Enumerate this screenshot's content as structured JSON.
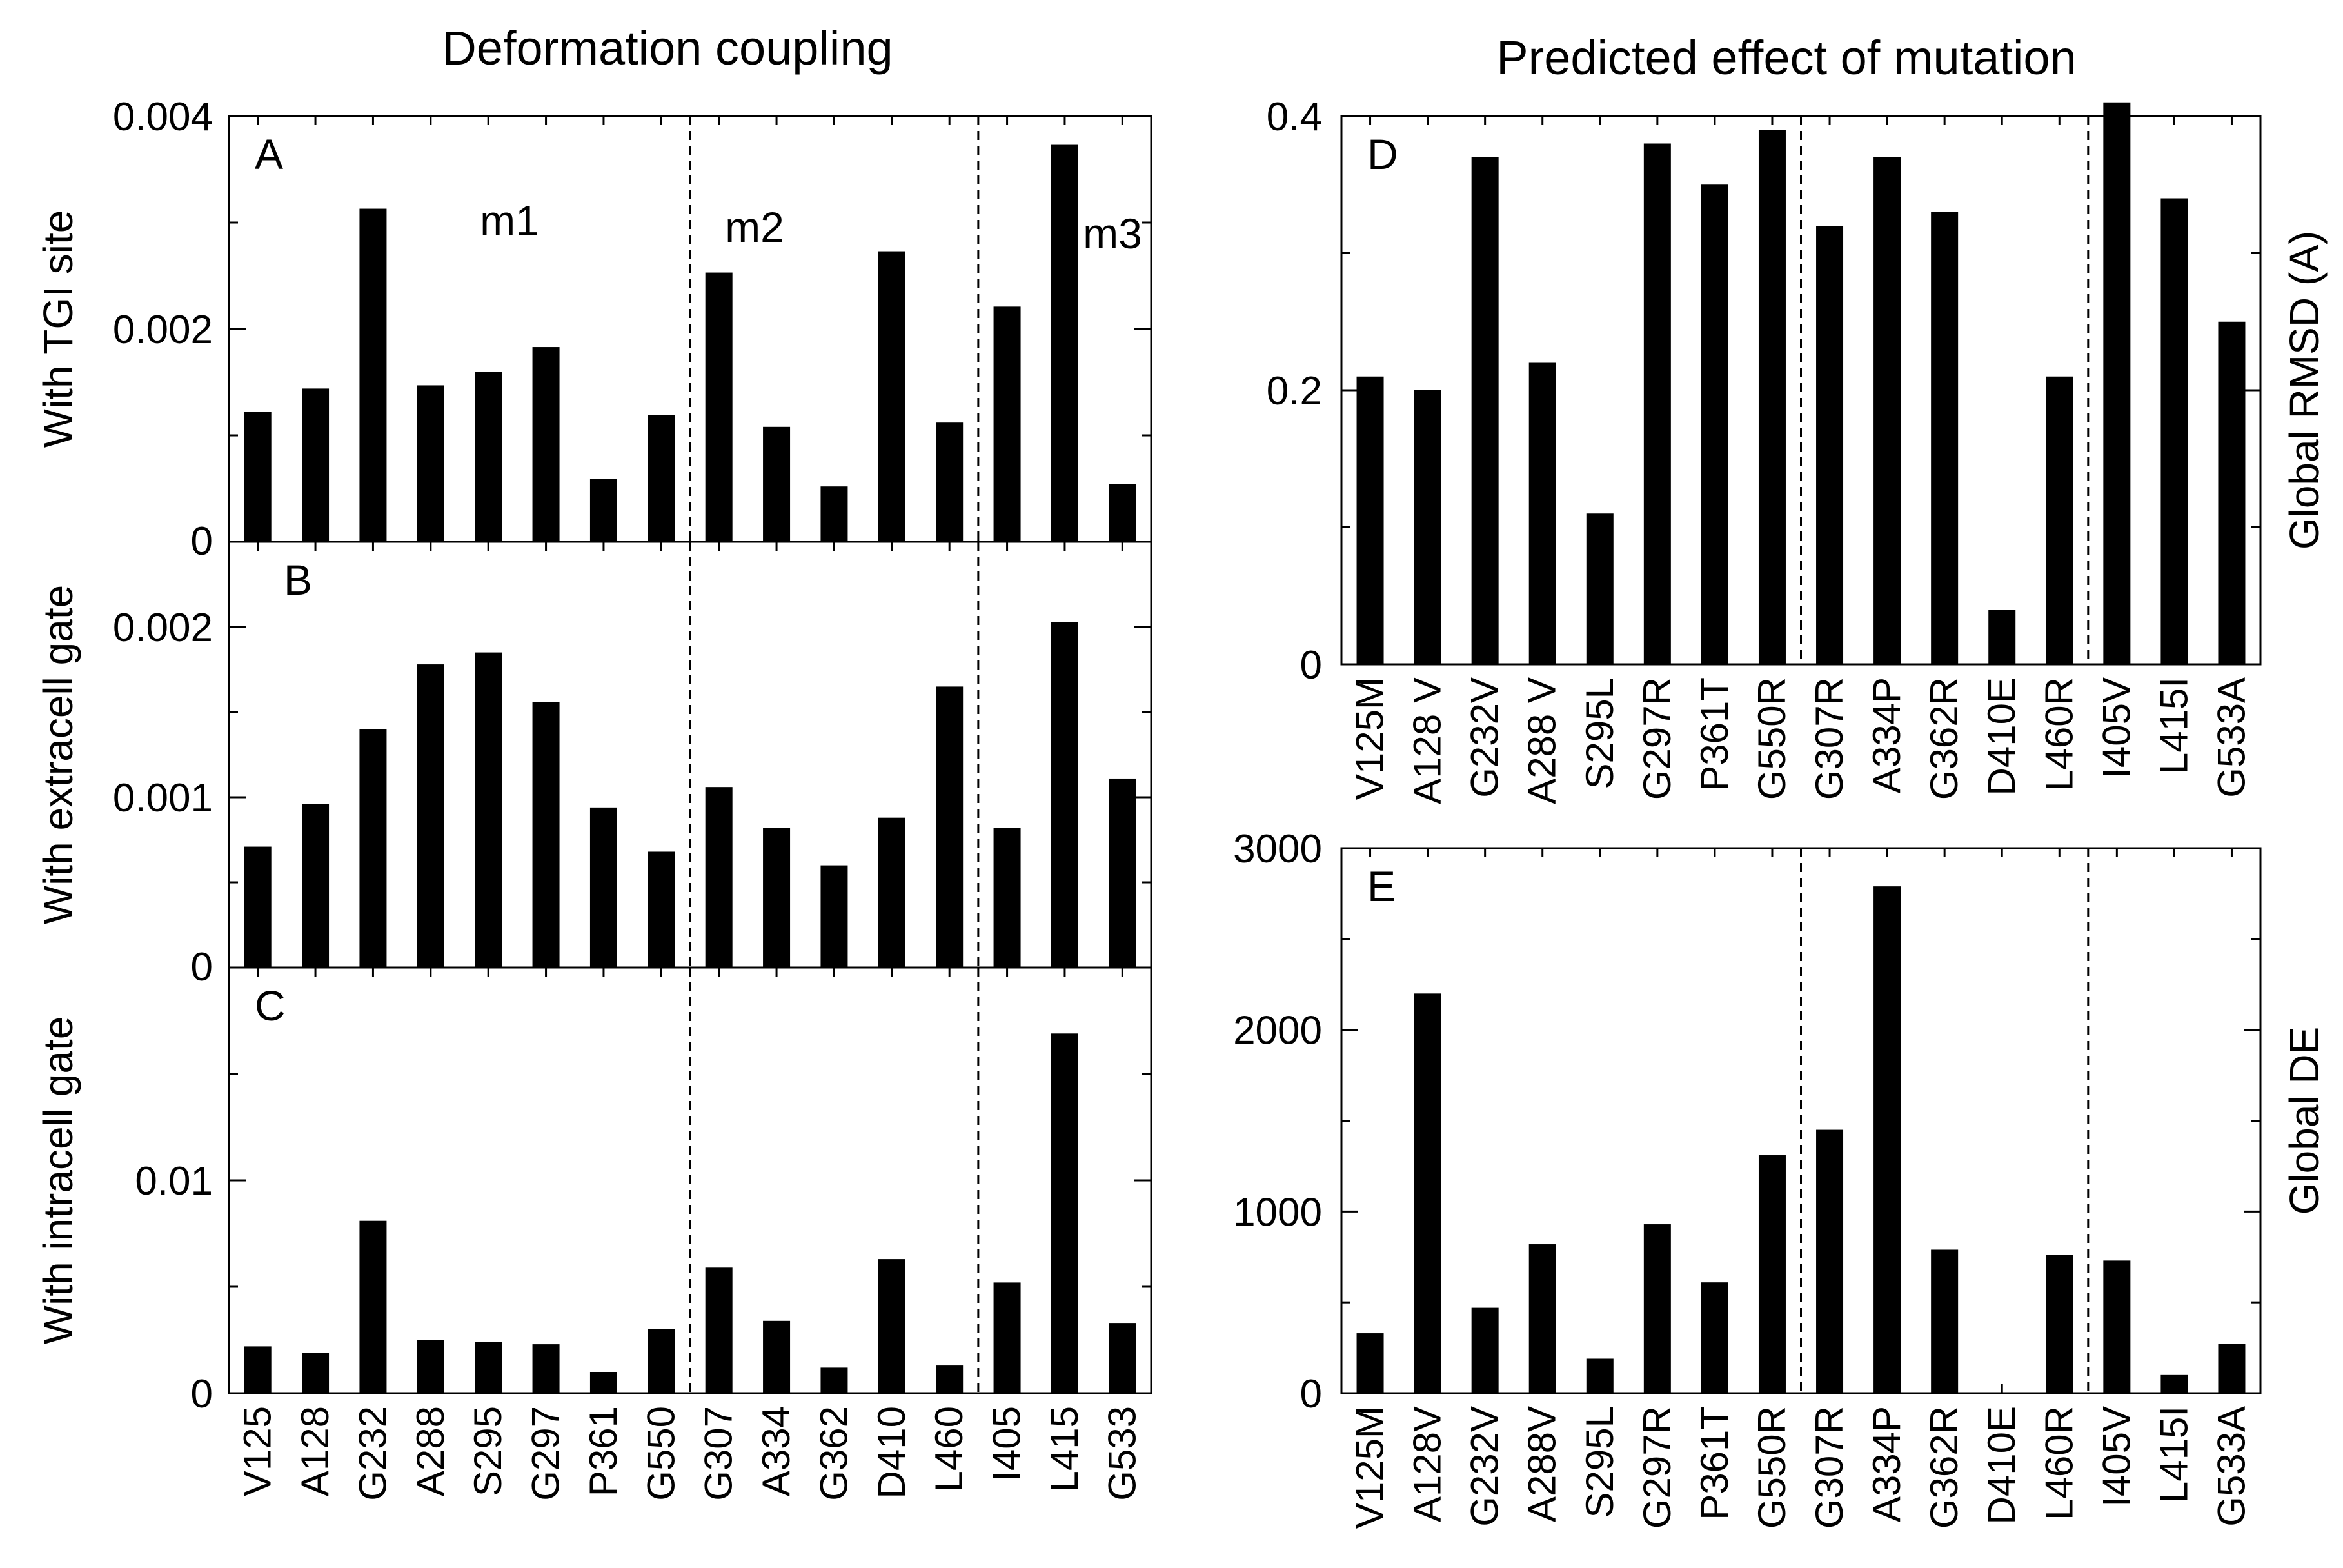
{
  "titles": {
    "left": "Deformation coupling",
    "right": "Predicted effect of mutation"
  },
  "chart_data": [
    {
      "type": "bar",
      "panel": "A",
      "ylabel": "With TGI site",
      "ylim": [
        0,
        0.004
      ],
      "yticks": [
        0,
        0.002,
        0.004
      ],
      "ytick_labels": [
        "0",
        "0.002",
        "0.004"
      ],
      "categories": [
        "V125",
        "A128",
        "G232",
        "A288",
        "S295",
        "G297",
        "P361",
        "G550",
        "G307",
        "A334",
        "G362",
        "D410",
        "L460",
        "I405",
        "L415",
        "G533"
      ],
      "values": [
        0.00122,
        0.00144,
        0.00313,
        0.00147,
        0.0016,
        0.00183,
        0.00059,
        0.00119,
        0.00253,
        0.00108,
        0.00052,
        0.00273,
        0.00112,
        0.00221,
        0.00373,
        0.00054
      ],
      "annotations": [
        "m1",
        "m2",
        "m3"
      ],
      "group_dividers_after": [
        8,
        13
      ]
    },
    {
      "type": "bar",
      "panel": "B",
      "ylabel": "With extracell gate",
      "ylim": [
        0,
        0.0025
      ],
      "yticks": [
        0,
        0.001,
        0.002
      ],
      "ytick_labels": [
        "0",
        "0.001",
        "0.002"
      ],
      "categories": [
        "V125",
        "A128",
        "G232",
        "A288",
        "S295",
        "G297",
        "P361",
        "G550",
        "G307",
        "A334",
        "G362",
        "D410",
        "L460",
        "I405",
        "L415",
        "G533"
      ],
      "values": [
        0.00071,
        0.00096,
        0.0014,
        0.00178,
        0.00185,
        0.00156,
        0.00094,
        0.00068,
        0.00106,
        0.00082,
        0.0006,
        0.00088,
        0.00165,
        0.00082,
        0.00203,
        0.00111
      ],
      "group_dividers_after": [
        8,
        13
      ]
    },
    {
      "type": "bar",
      "panel": "C",
      "ylabel": "With intracell gate",
      "ylim": [
        0,
        0.02
      ],
      "yticks": [
        0,
        0.01
      ],
      "ytick_labels": [
        "0",
        "0.01"
      ],
      "categories": [
        "V125",
        "A128",
        "G232",
        "A288",
        "S295",
        "G297",
        "P361",
        "G550",
        "G307",
        "A334",
        "G362",
        "D410",
        "L460",
        "I405",
        "L415",
        "G533"
      ],
      "values": [
        0.0022,
        0.0019,
        0.0081,
        0.0025,
        0.0024,
        0.0023,
        0.001,
        0.003,
        0.0059,
        0.0034,
        0.0012,
        0.0063,
        0.0013,
        0.0052,
        0.0169,
        0.0033
      ],
      "group_dividers_after": [
        8,
        13
      ]
    },
    {
      "type": "bar",
      "panel": "D",
      "ylabel": "Global RMSD (A)",
      "ylim": [
        0,
        0.4
      ],
      "yticks": [
        0,
        0.2,
        0.4
      ],
      "ytick_labels": [
        "0",
        "0.2",
        "0.4"
      ],
      "categories": [
        "V125M",
        "A128 V",
        "G232V",
        "A288 V",
        "S295L",
        "G297R",
        "P361T",
        "G550R",
        "G307R",
        "A334P",
        "G362R",
        "D410E",
        "L460R",
        "I405V",
        "L415I",
        "G533A"
      ],
      "values": [
        0.21,
        0.2,
        0.37,
        0.22,
        0.11,
        0.38,
        0.35,
        0.39,
        0.32,
        0.37,
        0.33,
        0.04,
        0.21,
        0.41,
        0.34,
        0.25
      ],
      "group_dividers_after": [
        8,
        13
      ]
    },
    {
      "type": "bar",
      "panel": "E",
      "ylabel": "Global DE",
      "ylim": [
        0,
        3000
      ],
      "yticks": [
        0,
        1000,
        2000,
        3000
      ],
      "ytick_labels": [
        "0",
        "1000",
        "2000",
        "3000"
      ],
      "categories": [
        "V125M",
        "A128V",
        "G232V",
        "A288V",
        "S295L",
        "G297R",
        "P361T",
        "G550R",
        "G307R",
        "A334P",
        "G362R",
        "D410E",
        "L460R",
        "I405V",
        "L415I",
        "G533A"
      ],
      "values": [
        330,
        2200,
        470,
        820,
        190,
        930,
        610,
        1310,
        1450,
        2790,
        790,
        0,
        760,
        730,
        100,
        270
      ],
      "group_dividers_after": [
        8,
        13
      ]
    }
  ]
}
